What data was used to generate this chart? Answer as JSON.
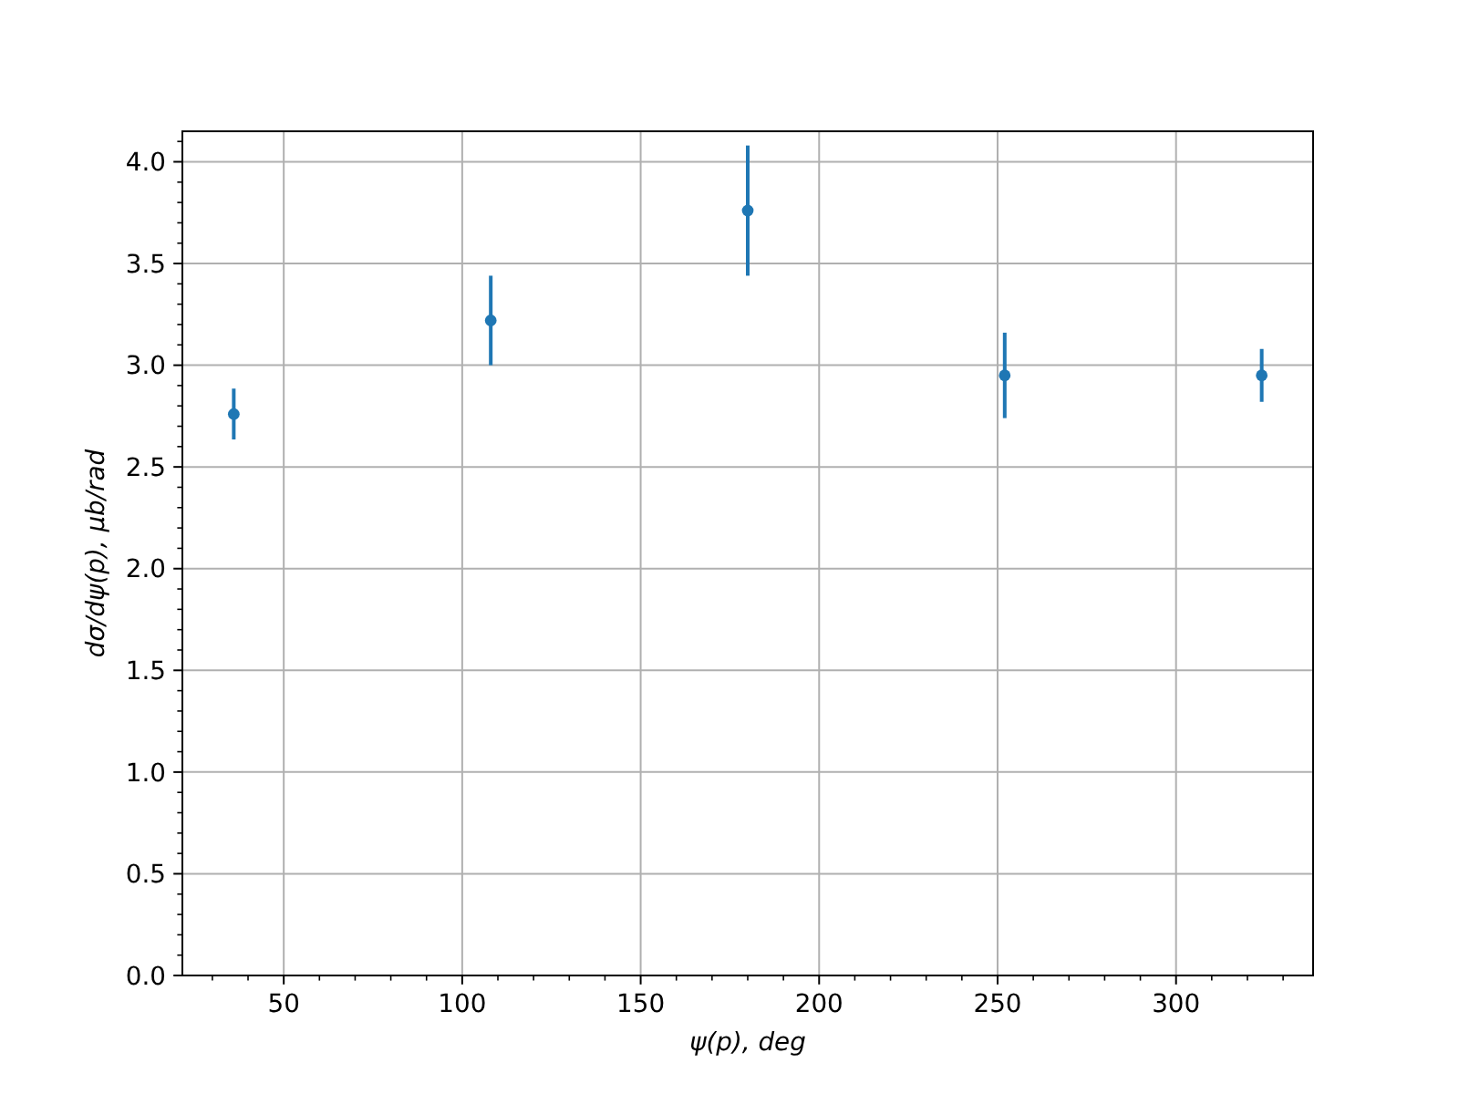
{
  "chart_data": {
    "type": "scatter",
    "xlabel": "ψ(p), deg",
    "ylabel": "dσ/dψ(p), μb/rad",
    "x": [
      36,
      108,
      180,
      252,
      324
    ],
    "values": [
      2.76,
      3.22,
      3.76,
      2.95,
      2.95
    ],
    "errors": [
      0.125,
      0.22,
      0.32,
      0.21,
      0.13
    ],
    "color": "#1f77b4",
    "marker": "circle",
    "xlim": [
      21.6,
      338.4
    ],
    "ylim": [
      0,
      4.15
    ],
    "xticks": [
      {
        "value": 30,
        "label": null
      },
      {
        "value": 40,
        "label": null
      },
      50,
      {
        "value": 60,
        "label": null
      },
      {
        "value": 70,
        "label": null
      },
      {
        "value": 80,
        "label": null
      },
      {
        "value": 90,
        "label": null
      },
      100,
      {
        "value": 110,
        "label": null
      },
      {
        "value": 120,
        "label": null
      },
      {
        "value": 130,
        "label": null
      },
      {
        "value": 140,
        "label": null
      },
      150,
      {
        "value": 160,
        "label": null
      },
      {
        "value": 170,
        "label": null
      },
      {
        "value": 180,
        "label": null
      },
      {
        "value": 190,
        "label": null
      },
      200,
      {
        "value": 210,
        "label": null
      },
      {
        "value": 220,
        "label": null
      },
      {
        "value": 230,
        "label": null
      },
      {
        "value": 240,
        "label": null
      },
      250,
      {
        "value": 260,
        "label": null
      },
      {
        "value": 270,
        "label": null
      },
      {
        "value": 280,
        "label": null
      },
      {
        "value": 290,
        "label": null
      },
      300,
      {
        "value": 310,
        "label": null
      },
      {
        "value": 320,
        "label": null
      },
      {
        "value": 330,
        "label": null
      }
    ],
    "yticks": [
      {
        "value": 0,
        "label": "0.0"
      },
      {
        "value": 0.1,
        "label": null
      },
      {
        "value": 0.2,
        "label": null
      },
      {
        "value": 0.3,
        "label": null
      },
      {
        "value": 0.4,
        "label": null
      },
      0.5,
      {
        "value": 0.6,
        "label": null
      },
      {
        "value": 0.7,
        "label": null
      },
      {
        "value": 0.8,
        "label": null
      },
      {
        "value": 0.9,
        "label": null
      },
      {
        "value": 1,
        "label": "1.0"
      },
      {
        "value": 1.1,
        "label": null
      },
      {
        "value": 1.2,
        "label": null
      },
      {
        "value": 1.3,
        "label": null
      },
      {
        "value": 1.4,
        "label": null
      },
      1.5,
      {
        "value": 1.6,
        "label": null
      },
      {
        "value": 1.7,
        "label": null
      },
      {
        "value": 1.8,
        "label": null
      },
      {
        "value": 1.9,
        "label": null
      },
      {
        "value": 2,
        "label": "2.0"
      },
      {
        "value": 2.1,
        "label": null
      },
      {
        "value": 2.2,
        "label": null
      },
      {
        "value": 2.3,
        "label": null
      },
      {
        "value": 2.4,
        "label": null
      },
      2.5,
      {
        "value": 2.6,
        "label": null
      },
      {
        "value": 2.7,
        "label": null
      },
      {
        "value": 2.8,
        "label": null
      },
      {
        "value": 2.9,
        "label": null
      },
      {
        "value": 3,
        "label": "3.0"
      },
      {
        "value": 3.1,
        "label": null
      },
      {
        "value": 3.2,
        "label": null
      },
      {
        "value": 3.3,
        "label": null
      },
      {
        "value": 3.4,
        "label": null
      },
      3.5,
      {
        "value": 3.6,
        "label": null
      },
      {
        "value": 3.7,
        "label": null
      },
      {
        "value": 3.8,
        "label": null
      },
      {
        "value": 3.9,
        "label": null
      },
      {
        "value": 4,
        "label": "4.0"
      },
      {
        "value": 4.1,
        "label": null
      }
    ],
    "grid": true
  }
}
